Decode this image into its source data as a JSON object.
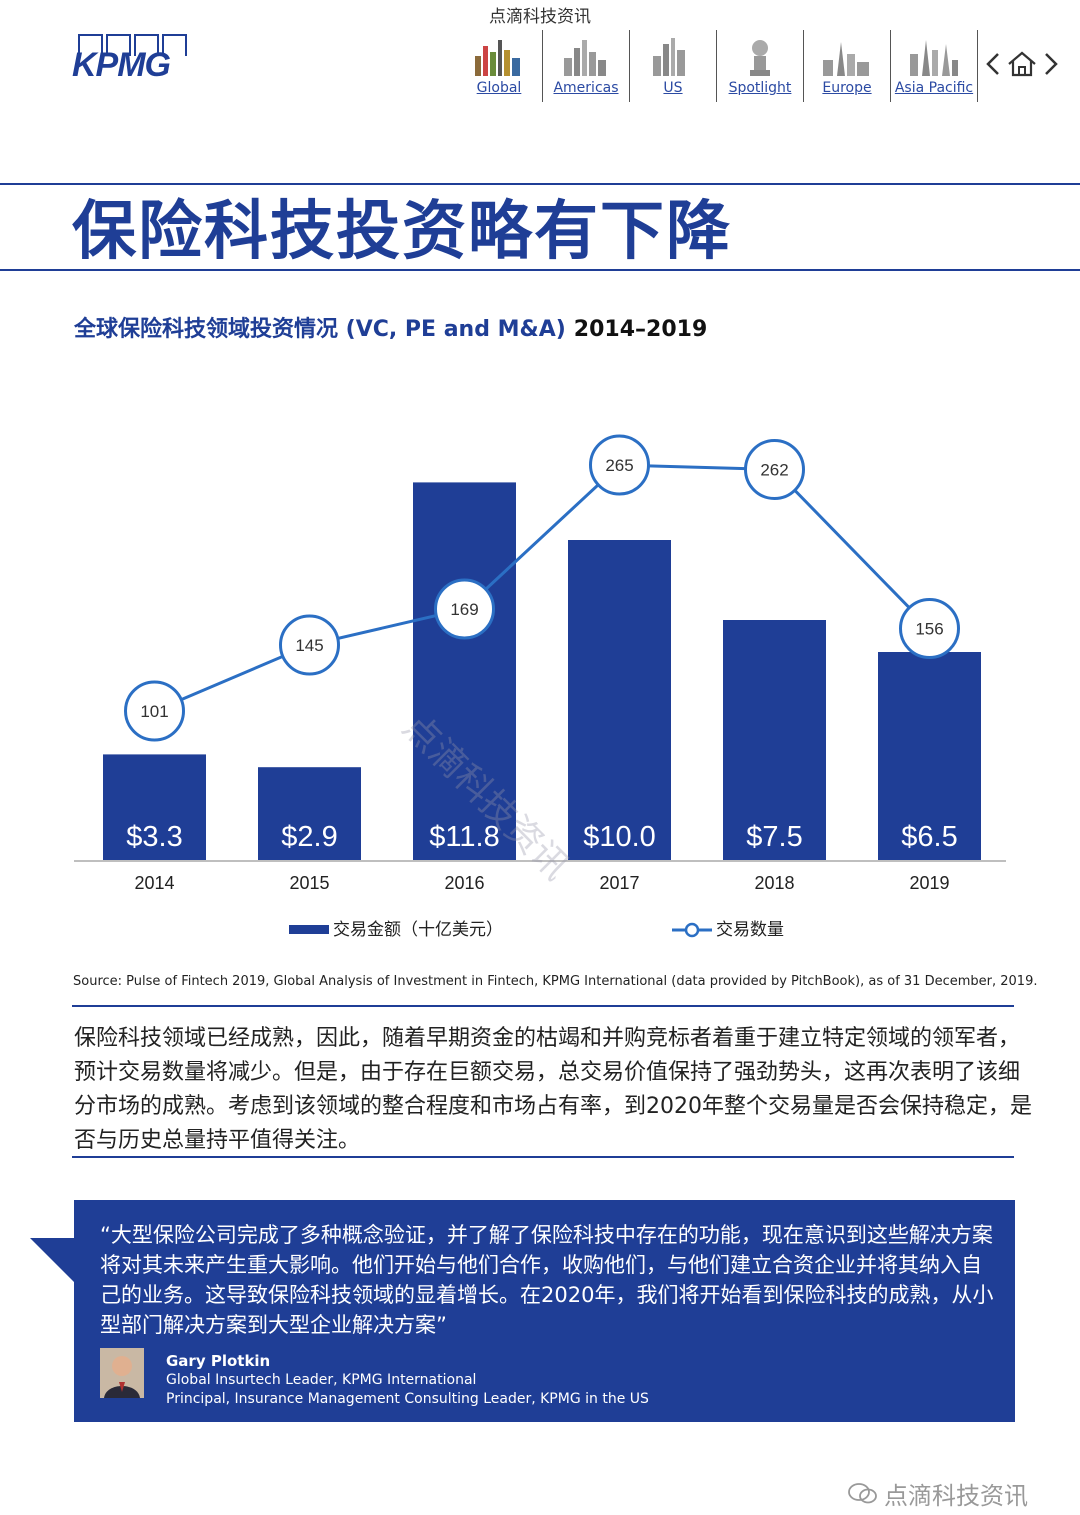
{
  "header": {
    "top_source": "点滴科技资讯",
    "logo_text": "KPMG",
    "nav": [
      "Global",
      "Americas",
      "US",
      "Spotlight",
      "Europe",
      "Asia Pacific"
    ]
  },
  "page_title": "保险科技投资略有下降",
  "chart_title_main": "全球保险科技领域投资情况 (VC, PE and M&A)",
  "chart_title_years": "2014–2019",
  "chart_data": {
    "type": "bar",
    "categories": [
      "2014",
      "2015",
      "2016",
      "2017",
      "2018",
      "2019"
    ],
    "series": [
      {
        "name": "交易金额（十亿美元）",
        "type": "bar",
        "values": [
          3.3,
          2.9,
          11.8,
          10.0,
          7.5,
          6.5
        ],
        "labels": [
          "$3.3",
          "$2.9",
          "$11.8",
          "$10.0",
          "$7.5",
          "$6.5"
        ]
      },
      {
        "name": "交易数量",
        "type": "line",
        "values": [
          101,
          145,
          169,
          265,
          262,
          156
        ]
      }
    ],
    "legend_position": "bottom",
    "grid": false,
    "colors": {
      "bar": "#1f3e96",
      "line": "#2b6fc4"
    }
  },
  "source_note": "Source: Pulse of Fintech 2019, Global Analysis of Investment in Fintech, KPMG International (data provided by PitchBook), as of 31 December, 2019.",
  "body_text": "保险科技领域已经成熟，因此，随着早期资金的枯竭和并购竞标者着重于建立特定领域的领军者，预计交易数量将减少。但是，由于存在巨额交易，总交易价值保持了强劲势头，这再次表明了该细分市场的成熟。考虑到该领域的整合程度和市场占有率，到2020年整个交易量是否会保持稳定，是否与历史总量持平值得关注。",
  "quote": {
    "text": "“大型保险公司完成了多种概念验证，并了解了保险科技中存在的功能，现在意识到这些解决方案将对其未来产生重大影响。他们开始与他们合作，收购他们，与他们建立合资企业并将其纳入自己的业务。这导致保险科技领域的显着增长。在2020年，我们将开始看到保险科技的成熟，从小型部门解决方案到大型企业解决方案”",
    "name": "Gary Plotkin",
    "role1": "Global Insurtech Leader, KPMG International",
    "role2": "Principal, Insurance Management Consulting Leader, KPMG in the US"
  },
  "watermark": "点滴科技资讯",
  "footer": "点滴科技资讯"
}
